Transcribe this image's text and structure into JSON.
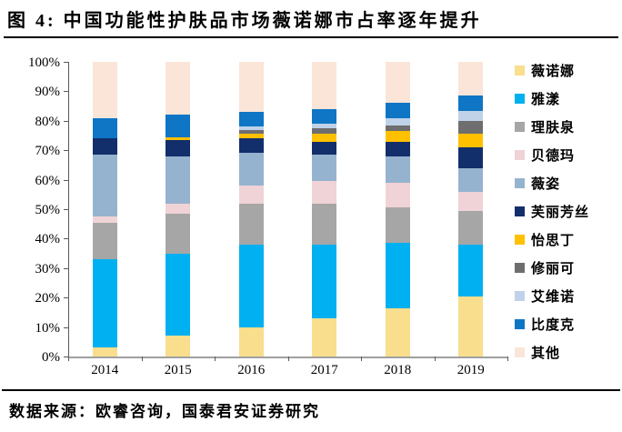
{
  "figure": {
    "title": "图 4:  中国功能性护肤品市场薇诺娜市占率逐年提升",
    "source": "数据来源：欧睿咨询，国泰君安证券研究"
  },
  "chart_data": {
    "type": "bar",
    "stacked": true,
    "stacked_total_percent": 100,
    "grid": false,
    "legend_position": "right",
    "ylabel": "",
    "xlabel": "",
    "ylim": [
      0,
      100
    ],
    "y_ticks": [
      "0%",
      "10%",
      "20%",
      "30%",
      "40%",
      "50%",
      "60%",
      "70%",
      "80%",
      "90%",
      "100%"
    ],
    "categories": [
      "2014",
      "2015",
      "2016",
      "2017",
      "2018",
      "2019"
    ],
    "series": [
      {
        "name": "薇诺娜",
        "color": "#F8DE8D",
        "values": [
          3,
          7,
          10,
          13,
          16.5,
          20.5
        ]
      },
      {
        "name": "雅漾",
        "color": "#00B0F0",
        "values": [
          30,
          28,
          28,
          25,
          22,
          17.5
        ]
      },
      {
        "name": "理肤泉",
        "color": "#A6A6A6",
        "values": [
          12.5,
          13.5,
          14,
          14,
          12,
          11.5
        ]
      },
      {
        "name": "贝德玛",
        "color": "#F0D3D6",
        "values": [
          2,
          3.5,
          6,
          7.5,
          8.5,
          6.5
        ]
      },
      {
        "name": "薇姿",
        "color": "#95B3CE",
        "values": [
          21,
          16,
          11,
          9,
          9,
          8
        ]
      },
      {
        "name": "芙丽芳丝",
        "color": "#122E6B",
        "values": [
          5.5,
          5.5,
          5,
          4.5,
          5,
          7
        ]
      },
      {
        "name": "怡思丁",
        "color": "#FFC000",
        "values": [
          0,
          1,
          1.5,
          2.5,
          3.5,
          4.5
        ]
      },
      {
        "name": "修丽可",
        "color": "#6E6E6E",
        "values": [
          0,
          0,
          1.5,
          2,
          2,
          4.5
        ]
      },
      {
        "name": "艾维诺",
        "color": "#BFD2E8",
        "values": [
          0,
          0,
          1,
          1.5,
          2.5,
          3.5
        ]
      },
      {
        "name": "比度克",
        "color": "#0F75C5",
        "values": [
          7,
          7.5,
          5,
          5,
          5,
          5
        ]
      },
      {
        "name": "其他",
        "color": "#FBE5D8",
        "values": [
          19,
          18,
          17,
          16,
          14,
          11.5
        ]
      }
    ]
  }
}
